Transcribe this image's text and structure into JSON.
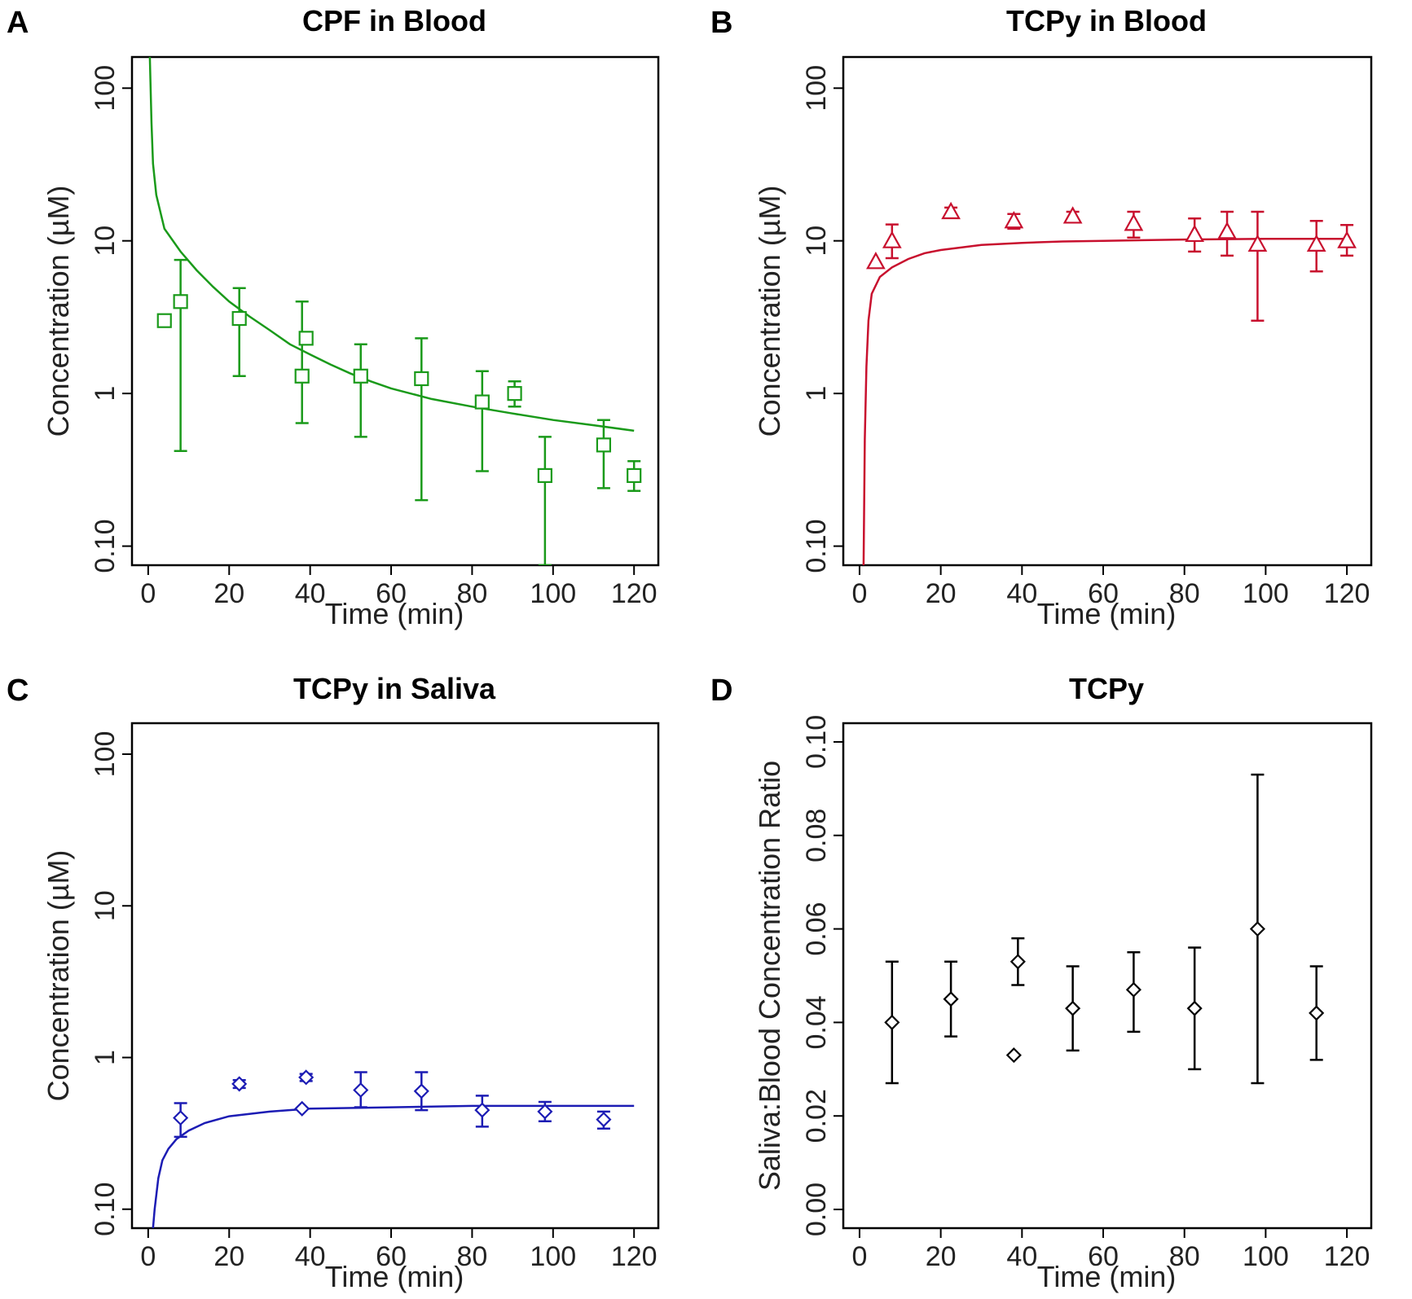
{
  "chart_data": [
    {
      "panel": "A",
      "type": "scatter",
      "title": "CPF in Blood",
      "xlabel": "Time (min)",
      "ylabel": "Concentration (µM)",
      "yscale": "log",
      "xlim": [
        -4,
        126
      ],
      "ylim": [
        0.075,
        160
      ],
      "xticks": [
        0,
        20,
        40,
        60,
        80,
        100,
        120
      ],
      "yticks": [
        {
          "value": 0.1,
          "label": "0.10"
        },
        {
          "value": 1,
          "label": "1"
        },
        {
          "value": 10,
          "label": "10"
        },
        {
          "value": 100,
          "label": "100"
        }
      ],
      "color": "#1a9a1a",
      "marker": "square",
      "series": [
        {
          "name": "observed",
          "points": [
            {
              "x": 4,
              "y": 3.0
            },
            {
              "x": 8,
              "y": 4.0,
              "lo": 0.42,
              "hi": 7.5
            },
            {
              "x": 22.5,
              "y": 3.1,
              "lo": 1.3,
              "hi": 4.9
            },
            {
              "x": 38,
              "y": 1.3,
              "lo": 0.64,
              "hi": 4.0
            },
            {
              "x": 39,
              "y": 2.3
            },
            {
              "x": 52.5,
              "y": 1.3,
              "lo": 0.52,
              "hi": 2.1
            },
            {
              "x": 67.5,
              "y": 1.25,
              "lo": 0.2,
              "hi": 2.3
            },
            {
              "x": 82.5,
              "y": 0.88,
              "lo": 0.31,
              "hi": 1.4
            },
            {
              "x": 90.5,
              "y": 1.0,
              "lo": 0.82,
              "hi": 1.2
            },
            {
              "x": 98,
              "y": 0.29,
              "lo": 0.075,
              "hi": 0.52
            },
            {
              "x": 112.5,
              "y": 0.46,
              "lo": 0.24,
              "hi": 0.67
            },
            {
              "x": 120,
              "y": 0.29,
              "lo": 0.23,
              "hi": 0.36
            }
          ]
        },
        {
          "name": "model",
          "line": [
            [
              0.4,
              160
            ],
            [
              0.8,
              60
            ],
            [
              1.2,
              32
            ],
            [
              2,
              20
            ],
            [
              4,
              12
            ],
            [
              8,
              8.5
            ],
            [
              12,
              6.4
            ],
            [
              16,
              5.0
            ],
            [
              20,
              4.0
            ],
            [
              25,
              3.2
            ],
            [
              30,
              2.6
            ],
            [
              35,
              2.1
            ],
            [
              40,
              1.8
            ],
            [
              45,
              1.55
            ],
            [
              50,
              1.35
            ],
            [
              55,
              1.2
            ],
            [
              60,
              1.08
            ],
            [
              70,
              0.92
            ],
            [
              80,
              0.82
            ],
            [
              90,
              0.74
            ],
            [
              100,
              0.67
            ],
            [
              110,
              0.62
            ],
            [
              120,
              0.57
            ]
          ]
        }
      ]
    },
    {
      "panel": "B",
      "type": "scatter",
      "title": "TCPy in Blood",
      "xlabel": "Time (min)",
      "ylabel": "Concentration (µM)",
      "yscale": "log",
      "xlim": [
        -4,
        126
      ],
      "ylim": [
        0.075,
        160
      ],
      "xticks": [
        0,
        20,
        40,
        60,
        80,
        100,
        120
      ],
      "yticks": [
        {
          "value": 0.1,
          "label": "0.10"
        },
        {
          "value": 1,
          "label": "1"
        },
        {
          "value": 10,
          "label": "10"
        },
        {
          "value": 100,
          "label": "100"
        }
      ],
      "color": "#c8102e",
      "marker": "triangle",
      "series": [
        {
          "name": "observed",
          "points": [
            {
              "x": 4,
              "y": 7.3
            },
            {
              "x": 8,
              "y": 10.0,
              "lo": 7.7,
              "hi": 12.8
            },
            {
              "x": 22.5,
              "y": 15.5,
              "lo": 14.5,
              "hi": 16.5
            },
            {
              "x": 38,
              "y": 13.5,
              "lo": 12.0,
              "hi": 15.0
            },
            {
              "x": 52.5,
              "y": 14.5,
              "lo": 13.5,
              "hi": 15.5
            },
            {
              "x": 67.5,
              "y": 13.0,
              "lo": 10.5,
              "hi": 15.5
            },
            {
              "x": 82.5,
              "y": 11.0,
              "lo": 8.5,
              "hi": 14.0
            },
            {
              "x": 90.5,
              "y": 11.5,
              "lo": 8.0,
              "hi": 15.5
            },
            {
              "x": 98,
              "y": 9.5,
              "lo": 3.0,
              "hi": 15.5
            },
            {
              "x": 112.5,
              "y": 9.5,
              "lo": 6.3,
              "hi": 13.5
            },
            {
              "x": 120,
              "y": 10.0,
              "lo": 8.0,
              "hi": 12.7
            }
          ]
        },
        {
          "name": "model",
          "line": [
            [
              1.0,
              0.075
            ],
            [
              1.3,
              0.5
            ],
            [
              1.7,
              1.5
            ],
            [
              2.2,
              3.0
            ],
            [
              3,
              4.5
            ],
            [
              5,
              5.8
            ],
            [
              8,
              6.7
            ],
            [
              12,
              7.6
            ],
            [
              16,
              8.3
            ],
            [
              20,
              8.7
            ],
            [
              30,
              9.4
            ],
            [
              40,
              9.7
            ],
            [
              50,
              9.9
            ],
            [
              60,
              10.0
            ],
            [
              80,
              10.2
            ],
            [
              100,
              10.3
            ],
            [
              110,
              10.3
            ],
            [
              120,
              10.3
            ]
          ]
        }
      ]
    },
    {
      "panel": "C",
      "type": "scatter",
      "title": "TCPy in Saliva",
      "xlabel": "Time (min)",
      "ylabel": "Concentration (µM)",
      "yscale": "log",
      "xlim": [
        -4,
        126
      ],
      "ylim": [
        0.075,
        160
      ],
      "xticks": [
        0,
        20,
        40,
        60,
        80,
        100,
        120
      ],
      "yticks": [
        {
          "value": 0.1,
          "label": "0.10"
        },
        {
          "value": 1,
          "label": "1"
        },
        {
          "value": 10,
          "label": "10"
        },
        {
          "value": 100,
          "label": "100"
        }
      ],
      "color": "#1c1cb4",
      "marker": "diamond",
      "series": [
        {
          "name": "observed",
          "points": [
            {
              "x": 8,
              "y": 0.4,
              "lo": 0.3,
              "hi": 0.5
            },
            {
              "x": 22.5,
              "y": 0.67,
              "lo": 0.63,
              "hi": 0.71
            },
            {
              "x": 38,
              "y": 0.46
            },
            {
              "x": 39,
              "y": 0.74,
              "lo": 0.7,
              "hi": 0.78
            },
            {
              "x": 52.5,
              "y": 0.61,
              "lo": 0.47,
              "hi": 0.8
            },
            {
              "x": 67.5,
              "y": 0.6,
              "lo": 0.45,
              "hi": 0.8
            },
            {
              "x": 82.5,
              "y": 0.45,
              "lo": 0.35,
              "hi": 0.56
            },
            {
              "x": 98,
              "y": 0.44,
              "lo": 0.38,
              "hi": 0.51
            },
            {
              "x": 112.5,
              "y": 0.39,
              "lo": 0.34,
              "hi": 0.44
            }
          ]
        },
        {
          "name": "model",
          "line": [
            [
              1.2,
              0.075
            ],
            [
              1.6,
              0.1
            ],
            [
              2.5,
              0.16
            ],
            [
              3.5,
              0.21
            ],
            [
              5,
              0.25
            ],
            [
              7,
              0.29
            ],
            [
              10,
              0.33
            ],
            [
              14,
              0.37
            ],
            [
              20,
              0.41
            ],
            [
              30,
              0.44
            ],
            [
              40,
              0.46
            ],
            [
              60,
              0.47
            ],
            [
              80,
              0.48
            ],
            [
              100,
              0.48
            ],
            [
              120,
              0.48
            ]
          ]
        }
      ]
    },
    {
      "panel": "D",
      "type": "scatter",
      "title": "TCPy",
      "xlabel": "Time (min)",
      "ylabel": "Saliva:Blood Concentration Ratio",
      "yscale": "linear",
      "xlim": [
        -4,
        126
      ],
      "ylim": [
        -0.004,
        0.104
      ],
      "xticks": [
        0,
        20,
        40,
        60,
        80,
        100,
        120
      ],
      "yticks": [
        {
          "value": 0.0,
          "label": "0.00"
        },
        {
          "value": 0.02,
          "label": "0.02"
        },
        {
          "value": 0.04,
          "label": "0.04"
        },
        {
          "value": 0.06,
          "label": "0.06"
        },
        {
          "value": 0.08,
          "label": "0.08"
        },
        {
          "value": 0.1,
          "label": "0.10"
        }
      ],
      "color": "#000000",
      "marker": "diamond",
      "series": [
        {
          "name": "observed",
          "points": [
            {
              "x": 8,
              "y": 0.04,
              "lo": 0.027,
              "hi": 0.053
            },
            {
              "x": 22.5,
              "y": 0.045,
              "lo": 0.037,
              "hi": 0.053
            },
            {
              "x": 38,
              "y": 0.033
            },
            {
              "x": 39,
              "y": 0.053,
              "lo": 0.048,
              "hi": 0.058
            },
            {
              "x": 52.5,
              "y": 0.043,
              "lo": 0.034,
              "hi": 0.052
            },
            {
              "x": 67.5,
              "y": 0.047,
              "lo": 0.038,
              "hi": 0.055
            },
            {
              "x": 82.5,
              "y": 0.043,
              "lo": 0.03,
              "hi": 0.056
            },
            {
              "x": 98,
              "y": 0.06,
              "lo": 0.027,
              "hi": 0.093
            },
            {
              "x": 112.5,
              "y": 0.042,
              "lo": 0.032,
              "hi": 0.052
            }
          ]
        }
      ]
    }
  ]
}
